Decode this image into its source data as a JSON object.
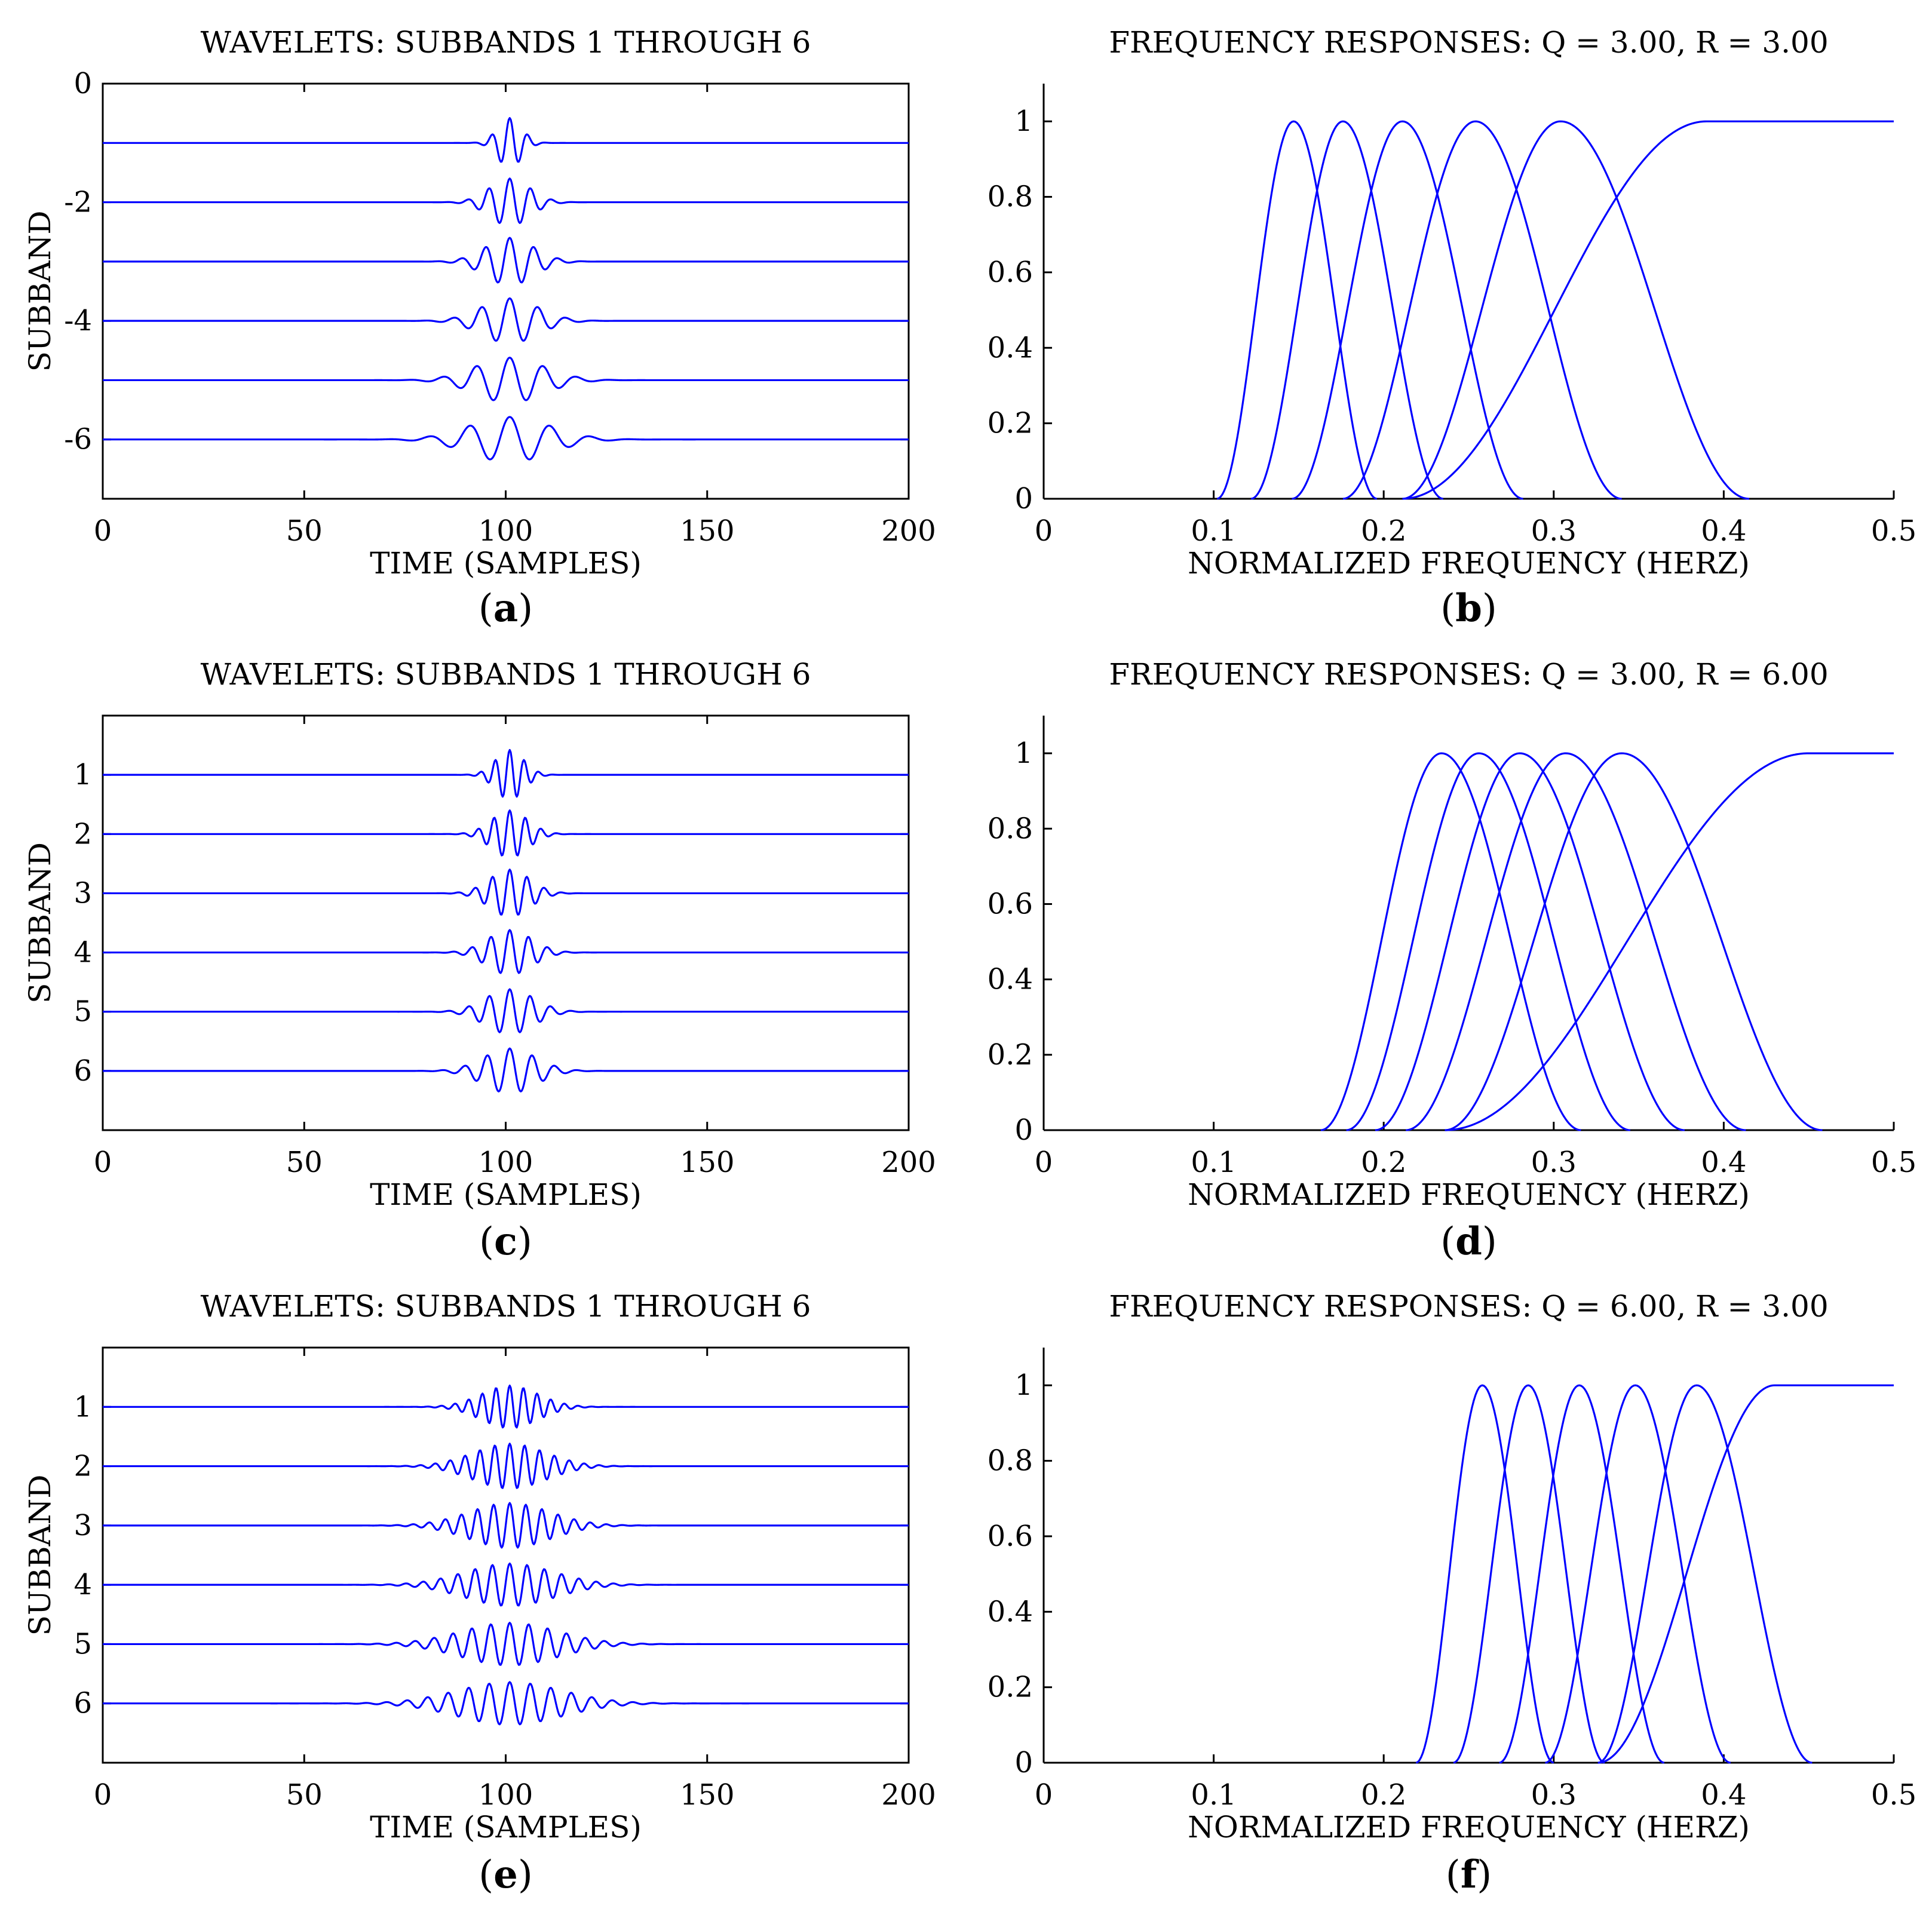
{
  "colors": {
    "line": "#0000ff",
    "axis": "#000000",
    "background": "#ffffff"
  },
  "chart_data": [
    {
      "type": "line",
      "panel": "a",
      "panel_label": "a",
      "title": "WAVELETS: SUBBANDS 1 THROUGH 6",
      "xlabel": "TIME (SAMPLES)",
      "ylabel": "SUBBAND",
      "xlim": [
        0,
        200
      ],
      "ylim": [
        -7,
        0
      ],
      "xticks": [
        0,
        50,
        100,
        150,
        200
      ],
      "xtick_labels": [
        "0",
        "50",
        "100",
        "150",
        "200"
      ],
      "yticks": [
        0,
        -2,
        -4,
        -6
      ],
      "ytick_labels": [
        "0",
        "-2",
        "-4",
        "-6"
      ],
      "frame": "box",
      "grid": false,
      "wavelets": {
        "center": 101,
        "offsets": [
          -1,
          -2,
          -3,
          -4,
          -5,
          -6
        ],
        "periods": [
          4.5,
          5.2,
          6.0,
          7.0,
          8.3,
          10.0
        ],
        "widths": [
          3.0,
          5.0,
          6.0,
          7.0,
          8.5,
          10.0
        ],
        "amplitudes": [
          0.42,
          0.4,
          0.4,
          0.38,
          0.38,
          0.38
        ]
      }
    },
    {
      "type": "line",
      "panel": "b",
      "panel_label": "b",
      "title": "FREQUENCY RESPONSES: Q = 3.00, R = 3.00",
      "xlabel": "NORMALIZED FREQUENCY (HERZ)",
      "ylabel": "",
      "xlim": [
        0,
        0.5
      ],
      "ylim": [
        0,
        1.1
      ],
      "xticks": [
        0,
        0.1,
        0.2,
        0.3,
        0.4,
        0.5
      ],
      "xtick_labels": [
        "0",
        "0.1",
        "0.2",
        "0.3",
        "0.4",
        "0.5"
      ],
      "yticks": [
        0,
        0.2,
        0.4,
        0.6,
        0.8,
        1
      ],
      "ytick_labels": [
        "0",
        "0.2",
        "0.4",
        "0.6",
        "0.8",
        "1"
      ],
      "frame": "open",
      "grid": false,
      "bands": [
        {
          "center": 0.147,
          "lower": 0.102,
          "upper": 0.196
        },
        {
          "center": 0.176,
          "lower": 0.122,
          "upper": 0.235
        },
        {
          "center": 0.211,
          "lower": 0.146,
          "upper": 0.282
        },
        {
          "center": 0.254,
          "lower": 0.176,
          "upper": 0.34
        },
        {
          "center": 0.304,
          "lower": 0.211,
          "upper": 0.415
        }
      ],
      "highpass": {
        "start": 0.211,
        "reach_one": 0.39
      }
    },
    {
      "type": "line",
      "panel": "c",
      "panel_label": "c",
      "title": "WAVELETS: SUBBANDS 1 THROUGH 6",
      "xlabel": "TIME (SAMPLES)",
      "ylabel": "SUBBAND",
      "xlim": [
        0,
        200
      ],
      "ylim": [
        7,
        0
      ],
      "xticks": [
        0,
        50,
        100,
        150,
        200
      ],
      "xtick_labels": [
        "0",
        "50",
        "100",
        "150",
        "200"
      ],
      "yticks": [
        1,
        2,
        3,
        4,
        5,
        6
      ],
      "ytick_labels": [
        "1",
        "2",
        "3",
        "4",
        "5",
        "6"
      ],
      "frame": "box",
      "grid": false,
      "wavelets": {
        "center": 101,
        "offsets": [
          1,
          2,
          3,
          4,
          5,
          6
        ],
        "periods": [
          3.6,
          3.9,
          4.3,
          4.7,
          5.1,
          5.6
        ],
        "widths": [
          3.5,
          4.5,
          5.0,
          5.5,
          6.0,
          6.5
        ],
        "amplitudes": [
          0.42,
          0.4,
          0.4,
          0.38,
          0.38,
          0.38
        ]
      }
    },
    {
      "type": "line",
      "panel": "d",
      "panel_label": "d",
      "title": "FREQUENCY RESPONSES: Q = 3.00, R = 6.00",
      "xlabel": "NORMALIZED FREQUENCY (HERZ)",
      "ylabel": "",
      "xlim": [
        0,
        0.5
      ],
      "ylim": [
        0,
        1.1
      ],
      "xticks": [
        0,
        0.1,
        0.2,
        0.3,
        0.4,
        0.5
      ],
      "xtick_labels": [
        "0",
        "0.1",
        "0.2",
        "0.3",
        "0.4",
        "0.5"
      ],
      "yticks": [
        0,
        0.2,
        0.4,
        0.6,
        0.8,
        1
      ],
      "ytick_labels": [
        "0",
        "0.2",
        "0.4",
        "0.6",
        "0.8",
        "1"
      ],
      "frame": "open",
      "grid": false,
      "bands": [
        {
          "center": 0.234,
          "lower": 0.163,
          "upper": 0.316
        },
        {
          "center": 0.256,
          "lower": 0.178,
          "upper": 0.345
        },
        {
          "center": 0.28,
          "lower": 0.195,
          "upper": 0.377
        },
        {
          "center": 0.307,
          "lower": 0.213,
          "upper": 0.413
        },
        {
          "center": 0.34,
          "lower": 0.236,
          "upper": 0.458
        }
      ],
      "highpass": {
        "start": 0.236,
        "reach_one": 0.45
      }
    },
    {
      "type": "line",
      "panel": "e",
      "panel_label": "e",
      "title": "WAVELETS: SUBBANDS 1 THROUGH 6",
      "xlabel": "TIME (SAMPLES)",
      "ylabel": "SUBBAND",
      "xlim": [
        0,
        200
      ],
      "ylim": [
        7,
        0
      ],
      "xticks": [
        0,
        50,
        100,
        150,
        200
      ],
      "xtick_labels": [
        "0",
        "50",
        "100",
        "150",
        "200"
      ],
      "yticks": [
        1,
        2,
        3,
        4,
        5,
        6
      ],
      "ytick_labels": [
        "1",
        "2",
        "3",
        "4",
        "5",
        "6"
      ],
      "frame": "box",
      "grid": false,
      "wavelets": {
        "center": 101,
        "offsets": [
          1,
          2,
          3,
          4,
          5,
          6
        ],
        "periods": [
          3.4,
          3.7,
          4.0,
          4.3,
          4.7,
          5.1
        ],
        "widths": [
          7.0,
          9.0,
          10.0,
          11.0,
          12.0,
          13.0
        ],
        "amplitudes": [
          0.36,
          0.38,
          0.38,
          0.36,
          0.36,
          0.36
        ]
      }
    },
    {
      "type": "line",
      "panel": "f",
      "panel_label": "f",
      "title": "FREQUENCY RESPONSES: Q = 6.00, R = 3.00",
      "xlabel": "NORMALIZED FREQUENCY (HERZ)",
      "ylabel": "",
      "xlim": [
        0,
        0.5
      ],
      "ylim": [
        0,
        1.1
      ],
      "xticks": [
        0,
        0.1,
        0.2,
        0.3,
        0.4,
        0.5
      ],
      "xtick_labels": [
        "0",
        "0.1",
        "0.2",
        "0.3",
        "0.4",
        "0.5"
      ],
      "yticks": [
        0,
        0.2,
        0.4,
        0.6,
        0.8,
        1
      ],
      "ytick_labels": [
        "0",
        "0.2",
        "0.4",
        "0.6",
        "0.8",
        "1"
      ],
      "frame": "open",
      "grid": false,
      "bands": [
        {
          "center": 0.258,
          "lower": 0.219,
          "upper": 0.3
        },
        {
          "center": 0.285,
          "lower": 0.241,
          "upper": 0.33
        },
        {
          "center": 0.315,
          "lower": 0.268,
          "upper": 0.365
        },
        {
          "center": 0.348,
          "lower": 0.295,
          "upper": 0.404
        },
        {
          "center": 0.384,
          "lower": 0.326,
          "upper": 0.452
        }
      ],
      "highpass": {
        "start": 0.326,
        "reach_one": 0.43
      }
    }
  ]
}
